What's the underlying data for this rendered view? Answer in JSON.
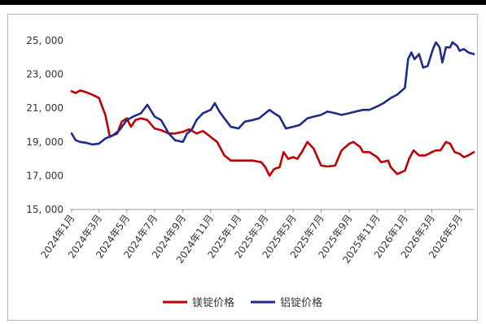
{
  "chart_data": {
    "type": "line",
    "title": "",
    "xlabel": "",
    "ylabel": "",
    "ylim": [
      15000,
      25000
    ],
    "yticks": [
      15000,
      17000,
      19000,
      21000,
      23000,
      25000
    ],
    "ytick_labels": [
      "15, 000",
      "17, 000",
      "19, 000",
      "21, 000",
      "23, 000",
      "25, 000"
    ],
    "xlim": [
      "2024-01",
      "2026-06"
    ],
    "xticks": [
      "2024-01",
      "2024-03",
      "2024-05",
      "2024-07",
      "2024-09",
      "2024-11",
      "2025-01",
      "2025-03",
      "2025-05",
      "2025-07",
      "2025-09",
      "2025-11",
      "2026-01",
      "2026-03",
      "2026-05"
    ],
    "xtick_labels": [
      "2024年1月",
      "2024年3月",
      "2024年5月",
      "2024年7月",
      "2024年9月",
      "2024年11月",
      "2025年1月",
      "2025年3月",
      "2025年5月",
      "2025年7月",
      "2025年9月",
      "2025年11月",
      "2026年1月",
      "2026年3月",
      "2026年5月"
    ],
    "grid": false,
    "legend": "bottom",
    "series": [
      {
        "name": "镁锭价格",
        "color": "#c00000",
        "points": [
          [
            "2024-01",
            22000
          ],
          [
            "2024-01-10",
            21900
          ],
          [
            "2024-01-20",
            22050
          ],
          [
            "2024-02",
            21950
          ],
          [
            "2024-02-15",
            21800
          ],
          [
            "2024-03",
            21600
          ],
          [
            "2024-03-15",
            20600
          ],
          [
            "2024-03-25",
            19300
          ],
          [
            "2024-04",
            19400
          ],
          [
            "2024-04-10",
            19500
          ],
          [
            "2024-04-20",
            20200
          ],
          [
            "2024-05",
            20400
          ],
          [
            "2024-05-10",
            19900
          ],
          [
            "2024-05-20",
            20300
          ],
          [
            "2024-06",
            20400
          ],
          [
            "2024-06-15",
            20300
          ],
          [
            "2024-07",
            19800
          ],
          [
            "2024-07-15",
            19700
          ],
          [
            "2024-08",
            19500
          ],
          [
            "2024-08-15",
            19500
          ],
          [
            "2024-09",
            19600
          ],
          [
            "2024-09-15",
            19750
          ],
          [
            "2024-10",
            19500
          ],
          [
            "2024-10-15",
            19650
          ],
          [
            "2024-11",
            19300
          ],
          [
            "2024-11-15",
            19000
          ],
          [
            "2024-12",
            18200
          ],
          [
            "2024-12-15",
            17900
          ],
          [
            "2025-01",
            17900
          ],
          [
            "2025-02",
            17900
          ],
          [
            "2025-02-20",
            17800
          ],
          [
            "2025-03",
            17500
          ],
          [
            "2025-03-10",
            17000
          ],
          [
            "2025-03-20",
            17400
          ],
          [
            "2025-04",
            17500
          ],
          [
            "2025-04-10",
            18400
          ],
          [
            "2025-04-20",
            18000
          ],
          [
            "2025-05",
            18100
          ],
          [
            "2025-05-10",
            18000
          ],
          [
            "2025-05-20",
            18400
          ],
          [
            "2025-06",
            19000
          ],
          [
            "2025-06-15",
            18600
          ],
          [
            "2025-07",
            17600
          ],
          [
            "2025-07-15",
            17550
          ],
          [
            "2025-08",
            17600
          ],
          [
            "2025-08-15",
            18500
          ],
          [
            "2025-09",
            18900
          ],
          [
            "2025-09-10",
            19000
          ],
          [
            "2025-09-25",
            18700
          ],
          [
            "2025-10",
            18400
          ],
          [
            "2025-10-15",
            18400
          ],
          [
            "2025-11",
            18100
          ],
          [
            "2025-11-10",
            17800
          ],
          [
            "2025-11-25",
            17900
          ],
          [
            "2025-12",
            17500
          ],
          [
            "2025-12-15",
            17100
          ],
          [
            "2026-01",
            17300
          ],
          [
            "2026-01-10",
            18000
          ],
          [
            "2026-01-20",
            18500
          ],
          [
            "2026-02",
            18200
          ],
          [
            "2026-02-15",
            18200
          ],
          [
            "2026-03",
            18400
          ],
          [
            "2026-03-10",
            18500
          ],
          [
            "2026-03-20",
            18500
          ],
          [
            "2026-04",
            19000
          ],
          [
            "2026-04-10",
            18900
          ],
          [
            "2026-04-20",
            18400
          ],
          [
            "2026-05",
            18300
          ],
          [
            "2026-05-10",
            18100
          ],
          [
            "2026-05-20",
            18200
          ],
          [
            "2026-06",
            18400
          ]
        ]
      },
      {
        "name": "铝锭价格",
        "color": "#1f2b8c",
        "points": [
          [
            "2024-01",
            19500
          ],
          [
            "2024-01-10",
            19100
          ],
          [
            "2024-01-20",
            19000
          ],
          [
            "2024-02",
            18950
          ],
          [
            "2024-02-15",
            18850
          ],
          [
            "2024-03",
            18900
          ],
          [
            "2024-03-15",
            19200
          ],
          [
            "2024-04",
            19400
          ],
          [
            "2024-04-15",
            19700
          ],
          [
            "2024-05",
            20300
          ],
          [
            "2024-05-15",
            20500
          ],
          [
            "2024-06",
            20700
          ],
          [
            "2024-06-15",
            21200
          ],
          [
            "2024-07",
            20500
          ],
          [
            "2024-07-15",
            20300
          ],
          [
            "2024-08",
            19500
          ],
          [
            "2024-08-15",
            19100
          ],
          [
            "2024-09",
            19000
          ],
          [
            "2024-09-10",
            19500
          ],
          [
            "2024-09-20",
            19700
          ],
          [
            "2024-10",
            20300
          ],
          [
            "2024-10-15",
            20700
          ],
          [
            "2024-11",
            20900
          ],
          [
            "2024-11-10",
            21300
          ],
          [
            "2024-11-20",
            20800
          ],
          [
            "2024-12",
            20400
          ],
          [
            "2024-12-15",
            19900
          ],
          [
            "2025-01",
            19800
          ],
          [
            "2025-01-15",
            20200
          ],
          [
            "2025-02",
            20300
          ],
          [
            "2025-02-15",
            20400
          ],
          [
            "2025-03",
            20700
          ],
          [
            "2025-03-10",
            20900
          ],
          [
            "2025-03-20",
            20700
          ],
          [
            "2025-04",
            20500
          ],
          [
            "2025-04-15",
            19800
          ],
          [
            "2025-05",
            19900
          ],
          [
            "2025-05-15",
            20000
          ],
          [
            "2025-06",
            20400
          ],
          [
            "2025-06-15",
            20500
          ],
          [
            "2025-07",
            20600
          ],
          [
            "2025-07-15",
            20800
          ],
          [
            "2025-08",
            20700
          ],
          [
            "2025-08-15",
            20600
          ],
          [
            "2025-09",
            20700
          ],
          [
            "2025-09-15",
            20800
          ],
          [
            "2025-10",
            20900
          ],
          [
            "2025-10-15",
            20900
          ],
          [
            "2025-11",
            21100
          ],
          [
            "2025-11-15",
            21300
          ],
          [
            "2025-12",
            21600
          ],
          [
            "2025-12-15",
            21800
          ],
          [
            "2026-01",
            22200
          ],
          [
            "2026-01-08",
            23900
          ],
          [
            "2026-01-15",
            24300
          ],
          [
            "2026-01-22",
            23900
          ],
          [
            "2026-02",
            24200
          ],
          [
            "2026-02-10",
            23400
          ],
          [
            "2026-02-20",
            23500
          ],
          [
            "2026-03",
            24300
          ],
          [
            "2026-03-05",
            24600
          ],
          [
            "2026-03-10",
            24900
          ],
          [
            "2026-03-18",
            24600
          ],
          [
            "2026-03-24",
            23700
          ],
          [
            "2026-04",
            24600
          ],
          [
            "2026-04-10",
            24600
          ],
          [
            "2026-04-15",
            24900
          ],
          [
            "2026-04-25",
            24700
          ],
          [
            "2026-05",
            24400
          ],
          [
            "2026-05-10",
            24500
          ],
          [
            "2026-05-20",
            24300
          ],
          [
            "2026-06",
            24200
          ]
        ]
      }
    ]
  }
}
